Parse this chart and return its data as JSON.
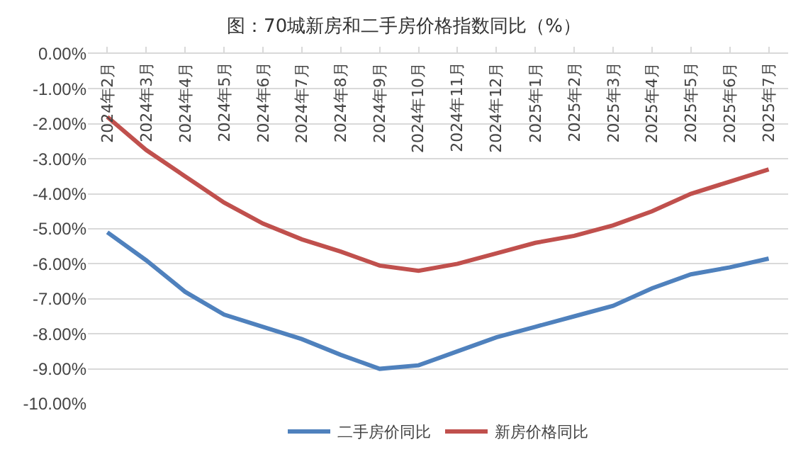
{
  "chart_data": {
    "type": "line",
    "title": "图：70城新房和二手房价格指数同比（%）",
    "categories": [
      "2024年2月",
      "2024年3月",
      "2024年4月",
      "2024年5月",
      "2024年6月",
      "2024年7月",
      "2024年8月",
      "2024年9月",
      "2024年10月",
      "2024年11月",
      "2024年12月",
      "2025年1月",
      "2025年2月",
      "2025年3月",
      "2025年4月",
      "2025年5月",
      "2025年6月",
      "2025年7月"
    ],
    "series": [
      {
        "name": "二手房价同比",
        "color": "#4f81bd",
        "values": [
          -5.1,
          -5.9,
          -6.8,
          -7.45,
          -7.8,
          -8.15,
          -8.6,
          -9.0,
          -8.9,
          -8.5,
          -8.1,
          -7.8,
          -7.5,
          -7.2,
          -6.7,
          -6.3,
          -6.1,
          -5.85
        ]
      },
      {
        "name": "新房价格同比",
        "color": "#c0504d",
        "values": [
          -1.8,
          -2.75,
          -3.5,
          -4.25,
          -4.85,
          -5.3,
          -5.65,
          -6.05,
          -6.2,
          -6.0,
          -5.7,
          -5.4,
          -5.2,
          -4.9,
          -4.5,
          -4.0,
          -3.65,
          -3.3
        ]
      }
    ],
    "ylim": [
      -10,
      0
    ],
    "yticks": [
      {
        "value": 0,
        "label": "0.00%"
      },
      {
        "value": -1,
        "label": "-1.00%"
      },
      {
        "value": -2,
        "label": "-2.00%"
      },
      {
        "value": -3,
        "label": "-3.00%"
      },
      {
        "value": -4,
        "label": "-4.00%"
      },
      {
        "value": -5,
        "label": "-5.00%"
      },
      {
        "value": -6,
        "label": "-6.00%"
      },
      {
        "value": -7,
        "label": "-7.00%"
      },
      {
        "value": -8,
        "label": "-8.00%"
      },
      {
        "value": -9,
        "label": "-9.00%"
      },
      {
        "value": -10,
        "label": "-10.00%"
      }
    ],
    "grid": "y",
    "legend": "bottom",
    "line_style": "solid",
    "marker": "none"
  }
}
